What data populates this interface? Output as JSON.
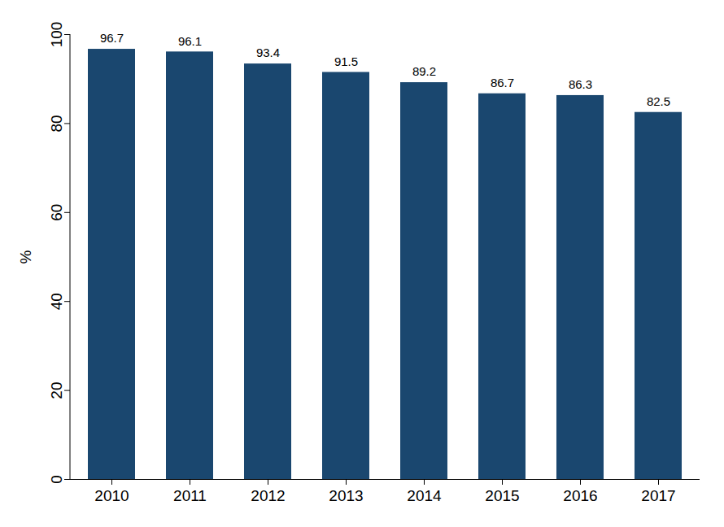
{
  "chart_data": {
    "type": "bar",
    "y_label": "%",
    "categories": [
      "2010",
      "2011",
      "2012",
      "2013",
      "2014",
      "2015",
      "2016",
      "2017"
    ],
    "values": [
      96.7,
      96.1,
      93.4,
      91.5,
      89.2,
      86.7,
      86.3,
      82.5
    ],
    "color": "#1a476f",
    "ylim": [
      0,
      100
    ],
    "yticks": [
      0,
      20,
      40,
      60,
      80,
      100
    ],
    "grid": false,
    "data_labels": true
  }
}
